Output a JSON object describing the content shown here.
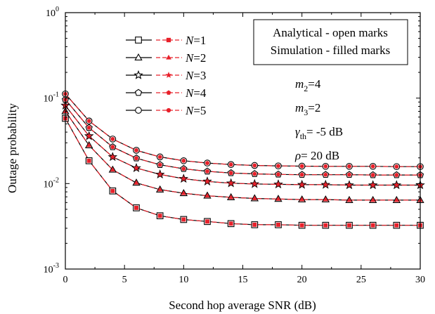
{
  "chart_data": {
    "type": "line",
    "xlabel": "Second hop average SNR (dB)",
    "ylabel": "Outage probability",
    "xlim": [
      0,
      30
    ],
    "ylim": [
      0.001,
      1
    ],
    "y_scale": "log",
    "x_ticks": [
      "0",
      "5",
      "10",
      "15",
      "20",
      "25",
      "30"
    ],
    "y_ticks": [
      {
        "value": 1,
        "base": "10",
        "exp": "0"
      },
      {
        "value": 0.1,
        "base": "10",
        "exp": "-1"
      },
      {
        "value": 0.01,
        "base": "10",
        "exp": "-2"
      },
      {
        "value": 0.001,
        "base": "10",
        "exp": "-3"
      }
    ],
    "grid": false,
    "legend_position": "top-left",
    "legend_var": "N",
    "legend_eq": "=",
    "analytical_color": "#000000",
    "simulation_color": "#e8202a",
    "marker_face": "#ffffff",
    "x": [
      0,
      2,
      4,
      6,
      8,
      10,
      12,
      14,
      16,
      18,
      20,
      22,
      24,
      26,
      28,
      30
    ],
    "series": [
      {
        "name": "1",
        "marker": "square",
        "values": [
          0.058,
          0.0185,
          0.0082,
          0.0052,
          0.0042,
          0.0038,
          0.0036,
          0.0034,
          0.0033,
          0.0033,
          0.00325,
          0.00325,
          0.00325,
          0.00325,
          0.00325,
          0.00325
        ]
      },
      {
        "name": "2",
        "marker": "triangle",
        "values": [
          0.07,
          0.028,
          0.0145,
          0.0102,
          0.0085,
          0.0077,
          0.0072,
          0.0069,
          0.0067,
          0.0066,
          0.0065,
          0.0065,
          0.0064,
          0.0064,
          0.0064,
          0.0064
        ]
      },
      {
        "name": "3",
        "marker": "star",
        "values": [
          0.082,
          0.036,
          0.0205,
          0.0152,
          0.0128,
          0.0114,
          0.0106,
          0.0101,
          0.0099,
          0.0098,
          0.0097,
          0.0097,
          0.0096,
          0.0096,
          0.0096,
          0.0096
        ]
      },
      {
        "name": "4",
        "marker": "pentagon",
        "values": [
          0.096,
          0.045,
          0.0268,
          0.0198,
          0.0166,
          0.0149,
          0.0139,
          0.0133,
          0.013,
          0.0128,
          0.0127,
          0.0127,
          0.0127,
          0.0126,
          0.0126,
          0.0126
        ]
      },
      {
        "name": "5",
        "marker": "circle",
        "values": [
          0.112,
          0.054,
          0.0332,
          0.0245,
          0.0205,
          0.0185,
          0.0174,
          0.0167,
          0.0163,
          0.0161,
          0.016,
          0.0159,
          0.0159,
          0.0159,
          0.0158,
          0.0158
        ]
      }
    ],
    "annotations": {
      "box_line1": "Analytical - open marks",
      "box_line2": "Simulation - filled marks",
      "m2": {
        "sym": "m",
        "sub": "2",
        "val": "=4"
      },
      "m3": {
        "sym": "m",
        "sub": "3",
        "val": "=2"
      },
      "gamma": {
        "sym": "γ",
        "sub": "th",
        "val": "= -5 dB"
      },
      "rho": {
        "sym": "ρ",
        "val": "= 20 dB"
      }
    }
  }
}
